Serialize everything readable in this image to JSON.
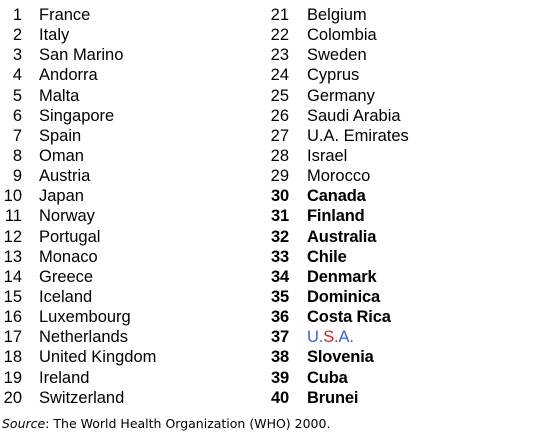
{
  "rankings": {
    "left": [
      {
        "rank": "1",
        "country": "France"
      },
      {
        "rank": "2",
        "country": "Italy"
      },
      {
        "rank": "3",
        "country": "San Marino"
      },
      {
        "rank": "4",
        "country": "Andorra"
      },
      {
        "rank": "5",
        "country": "Malta"
      },
      {
        "rank": "6",
        "country": "Singapore"
      },
      {
        "rank": "7",
        "country": "Spain"
      },
      {
        "rank": "8",
        "country": "Oman"
      },
      {
        "rank": "9",
        "country": "Austria"
      },
      {
        "rank": "10",
        "country": "Japan"
      },
      {
        "rank": "11",
        "country": "Norway"
      },
      {
        "rank": "12",
        "country": "Portugal"
      },
      {
        "rank": "13",
        "country": "Monaco"
      },
      {
        "rank": "14",
        "country": "Greece"
      },
      {
        "rank": "15",
        "country": "Iceland"
      },
      {
        "rank": "16",
        "country": "Luxembourg"
      },
      {
        "rank": "17",
        "country": "Netherlands"
      },
      {
        "rank": "18",
        "country": "United Kingdom"
      },
      {
        "rank": "19",
        "country": "Ireland"
      },
      {
        "rank": "20",
        "country": "Switzerland"
      }
    ],
    "right": [
      {
        "rank": "21",
        "country": "Belgium"
      },
      {
        "rank": "22",
        "country": "Colombia"
      },
      {
        "rank": "23",
        "country": "Sweden"
      },
      {
        "rank": "24",
        "country": "Cyprus"
      },
      {
        "rank": "25",
        "country": "Germany"
      },
      {
        "rank": "26",
        "country": "Saudi Arabia"
      },
      {
        "rank": "27",
        "country": "U.A. Emirates"
      },
      {
        "rank": "28",
        "country": "Israel"
      },
      {
        "rank": "29",
        "country": "Morocco"
      },
      {
        "rank": "30",
        "country": "Canada"
      },
      {
        "rank": "31",
        "country": "Finland"
      },
      {
        "rank": "32",
        "country": "Australia"
      },
      {
        "rank": "33",
        "country": "Chile"
      },
      {
        "rank": "34",
        "country": "Denmark"
      },
      {
        "rank": "35",
        "country": "Dominica"
      },
      {
        "rank": "36",
        "country": "Costa Rica"
      },
      {
        "rank": "37",
        "country": "U.S.A."
      },
      {
        "rank": "38",
        "country": "Slovenia"
      },
      {
        "rank": "39",
        "country": "Cuba"
      },
      {
        "rank": "40",
        "country": "Brunei"
      }
    ]
  },
  "usa_label": {
    "parts": [
      "U.",
      "S.",
      "A."
    ],
    "colors": [
      "#3366cc",
      "#d62020",
      "#3366cc"
    ]
  },
  "source": {
    "label": "Source",
    "text": ": The World Health Organization (WHO) 2000."
  }
}
